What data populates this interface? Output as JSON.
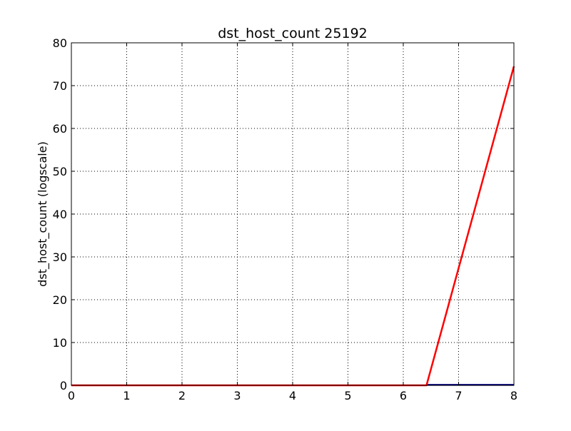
{
  "chart_data": {
    "type": "line",
    "title": "dst_host_count 25192",
    "xlabel": "",
    "ylabel": "dst_host_count (logscale)",
    "xlim": [
      0,
      8
    ],
    "ylim": [
      0,
      80
    ],
    "x_ticks": [
      "0",
      "1",
      "2",
      "3",
      "4",
      "5",
      "6",
      "7",
      "8"
    ],
    "y_ticks": [
      "0",
      "10",
      "20",
      "30",
      "40",
      "50",
      "60",
      "70",
      "80"
    ],
    "grid": true,
    "series": [
      {
        "color": "#ff0000",
        "x": [
          0,
          6.42,
          8
        ],
        "y": [
          0,
          0,
          74.5
        ]
      },
      {
        "color": "#000080",
        "x": [
          6.42,
          8
        ],
        "y": [
          0.1,
          0.1
        ]
      }
    ]
  }
}
